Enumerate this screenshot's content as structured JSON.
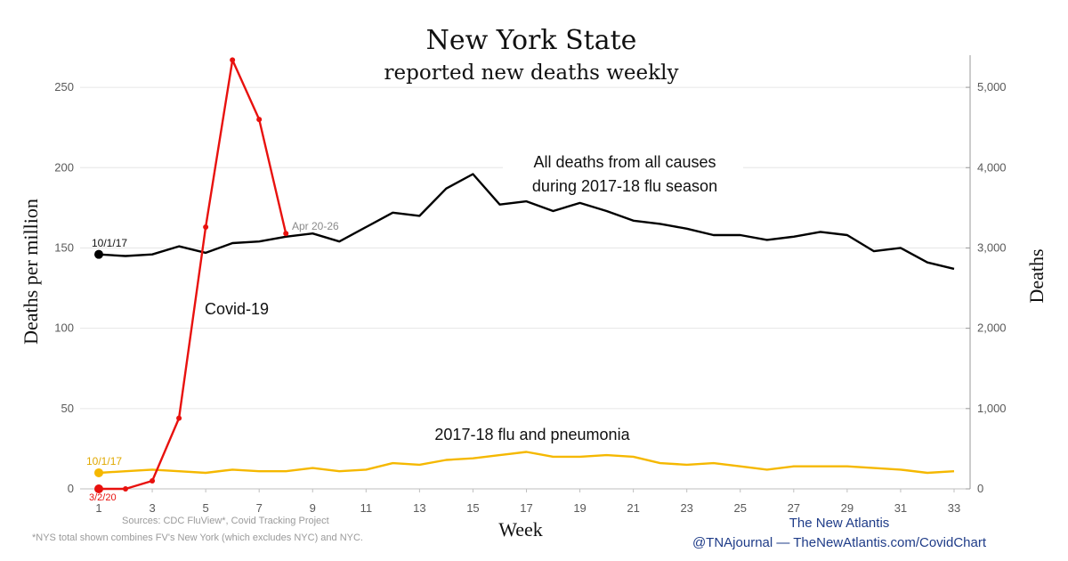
{
  "chart_data": {
    "type": "line",
    "title": "New York State",
    "subtitle": "reported new deaths weekly",
    "xlabel": "Week",
    "ylabel": "Deaths per million",
    "y2label": "Deaths",
    "xlim": [
      1,
      33
    ],
    "ylim": [
      0,
      270
    ],
    "y2lim": [
      0,
      5400
    ],
    "x_ticks": [
      1,
      3,
      5,
      7,
      9,
      11,
      13,
      15,
      17,
      19,
      21,
      23,
      25,
      27,
      29,
      31,
      33
    ],
    "y_ticks": [
      0,
      50,
      100,
      150,
      200,
      250
    ],
    "y2_ticks": [
      0,
      1000,
      2000,
      3000,
      4000,
      5000
    ],
    "y2_tick_labels": [
      "0",
      "1,000",
      "2,000",
      "3,000",
      "4,000",
      "5,000"
    ],
    "grid": true,
    "series": [
      {
        "name": "All deaths from all causes during 2017-18 flu season",
        "color": "#000000",
        "x": [
          1,
          2,
          3,
          4,
          5,
          6,
          7,
          8,
          9,
          10,
          11,
          12,
          13,
          14,
          15,
          16,
          17,
          18,
          19,
          20,
          21,
          22,
          23,
          24,
          25,
          26,
          27,
          28,
          29,
          30,
          31,
          32,
          33
        ],
        "y": [
          146,
          145,
          146,
          151,
          147,
          153,
          154,
          157,
          159,
          154,
          163,
          172,
          170,
          187,
          196,
          177,
          179,
          173,
          178,
          173,
          167,
          165,
          162,
          158,
          158,
          155,
          157,
          160,
          158,
          148,
          150,
          141,
          137
        ],
        "start_label": "10/1/17",
        "markers": "first"
      },
      {
        "name": "2017-18 flu and pneumonia",
        "color": "#f5b800",
        "x": [
          1,
          2,
          3,
          4,
          5,
          6,
          7,
          8,
          9,
          10,
          11,
          12,
          13,
          14,
          15,
          16,
          17,
          18,
          19,
          20,
          21,
          22,
          23,
          24,
          25,
          26,
          27,
          28,
          29,
          30,
          31,
          32,
          33
        ],
        "y": [
          10,
          11,
          12,
          11,
          10,
          12,
          11,
          11,
          13,
          11,
          12,
          16,
          15,
          18,
          19,
          21,
          23,
          20,
          20,
          21,
          20,
          16,
          15,
          16,
          14,
          12,
          14,
          14,
          14,
          13,
          12,
          10,
          11
        ],
        "start_label": "10/1/17",
        "markers": "first"
      },
      {
        "name": "Covid-19",
        "color": "#e8110e",
        "x": [
          1,
          2,
          3,
          4,
          5,
          6,
          7,
          8
        ],
        "y": [
          0,
          0,
          5,
          44,
          163,
          267,
          230,
          159
        ],
        "start_label": "3/2/20",
        "end_label": "Apr 20-26",
        "markers": "all"
      }
    ]
  },
  "sources": "Sources: CDC FluView*, Covid Tracking Project",
  "footnote": "*NYS total shown combines FV's New York (which excludes NYC) and NYC.",
  "credit_line1": "The New Atlantis",
  "credit_line2": "@TNAjournal — TheNewAtlantis.com/CovidChart"
}
